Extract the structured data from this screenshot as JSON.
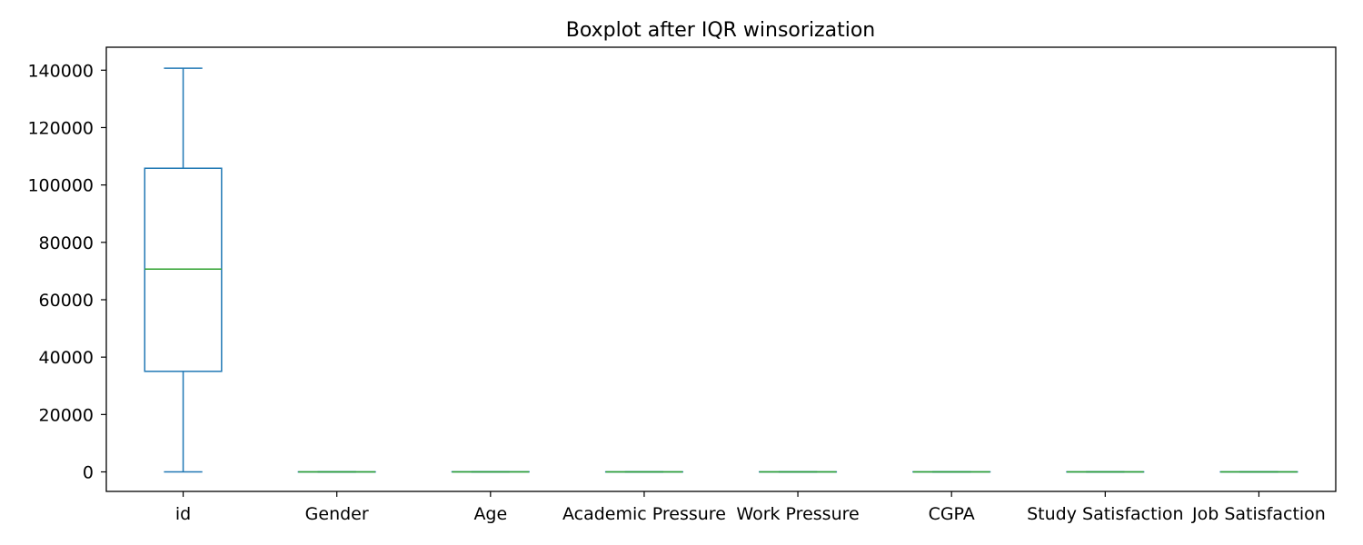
{
  "chart_data": {
    "type": "box",
    "title": "Boxplot after IQR winsorization",
    "xlabel": "",
    "ylabel": "",
    "categories": [
      "id",
      "Gender",
      "Age",
      "Academic Pressure",
      "Work Pressure",
      "CGPA",
      "Study Satisfaction",
      "Job Satisfaction"
    ],
    "boxes": [
      {
        "name": "id",
        "whisker_low": 2,
        "q1": 35040,
        "median": 70684,
        "q3": 105824,
        "whisker_high": 140699
      },
      {
        "name": "Gender",
        "whisker_low": 0,
        "q1": 0,
        "median": 0,
        "q3": 1,
        "whisker_high": 1
      },
      {
        "name": "Age",
        "whisker_low": 18,
        "q1": 21,
        "median": 25,
        "q3": 30,
        "whisker_high": 42
      },
      {
        "name": "Academic Pressure",
        "whisker_low": 0,
        "q1": 1,
        "median": 3,
        "q3": 4,
        "whisker_high": 5
      },
      {
        "name": "Work Pressure",
        "whisker_low": 0,
        "q1": 1,
        "median": 3,
        "q3": 4,
        "whisker_high": 5
      },
      {
        "name": "CGPA",
        "whisker_low": 5,
        "q1": 6.3,
        "median": 7.7,
        "q3": 8.9,
        "whisker_high": 10
      },
      {
        "name": "Study Satisfaction",
        "whisker_low": 0,
        "q1": 1,
        "median": 3,
        "q3": 4,
        "whisker_high": 5
      },
      {
        "name": "Job Satisfaction",
        "whisker_low": 0,
        "q1": 1,
        "median": 3,
        "q3": 4,
        "whisker_high": 5
      }
    ],
    "yticks": [
      0,
      20000,
      40000,
      60000,
      80000,
      100000,
      120000,
      140000
    ],
    "ylim": [
      -6800,
      148000
    ],
    "grid": false,
    "colors": {
      "box": "#1f77b4",
      "median": "#2ca02c",
      "axes": "#000000"
    }
  }
}
